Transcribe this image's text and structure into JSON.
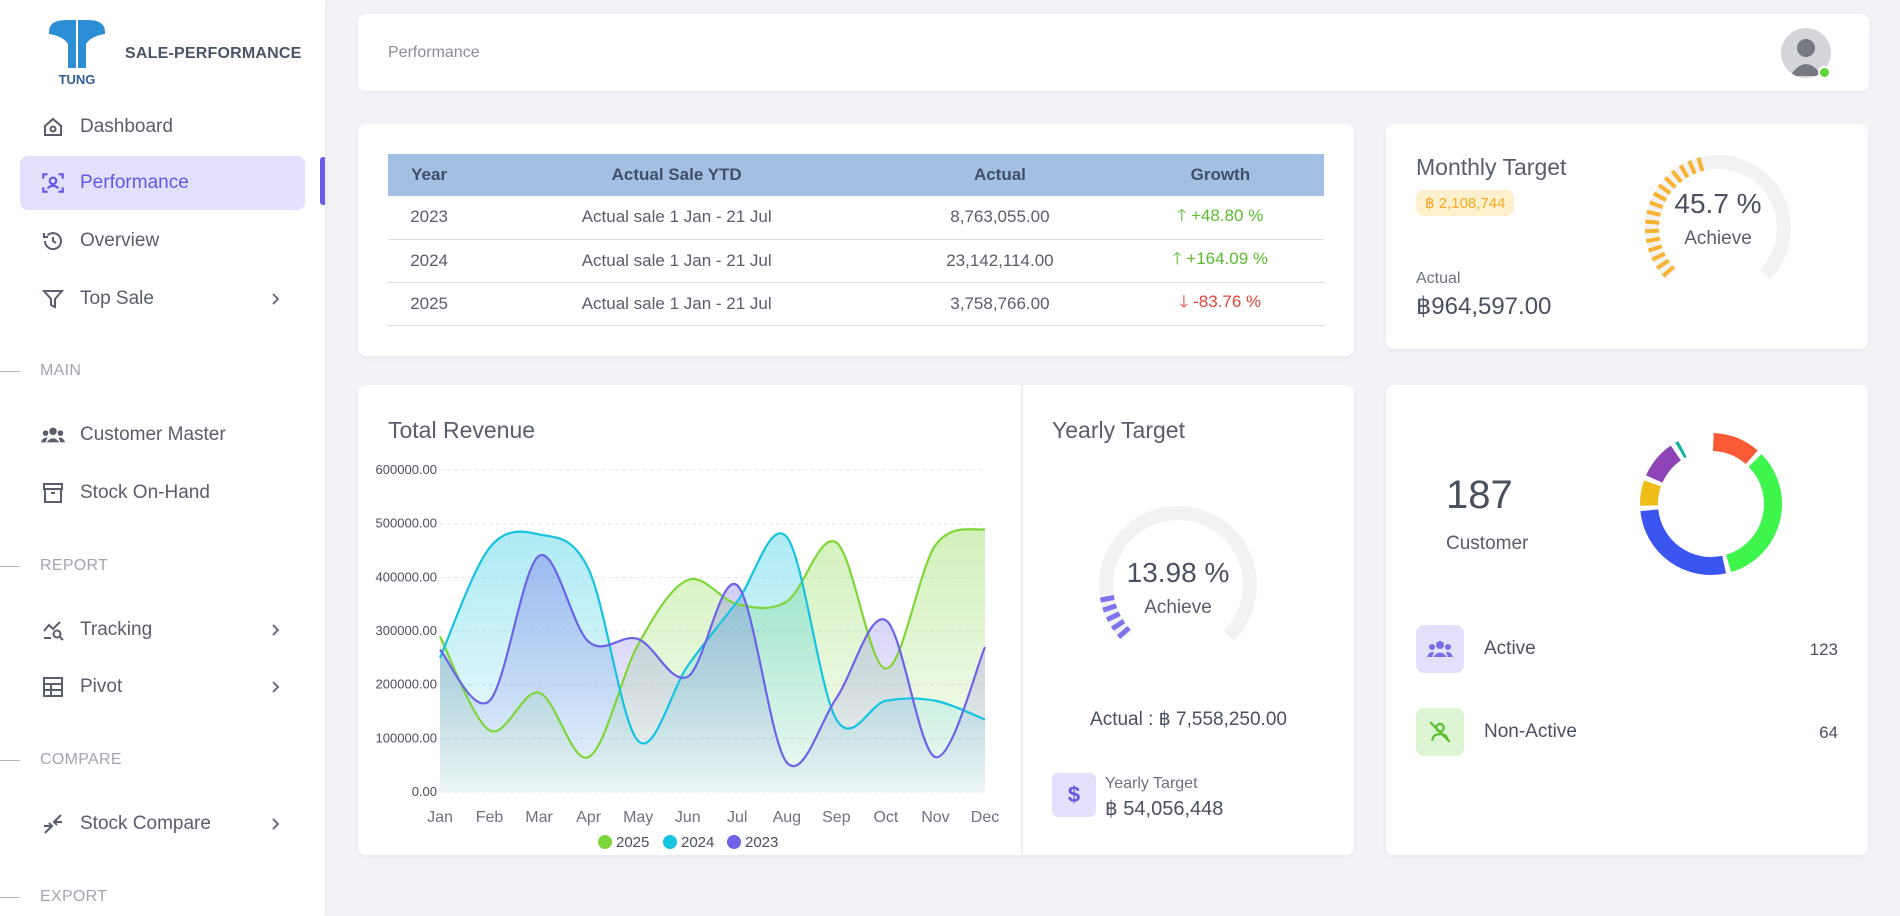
{
  "app": {
    "name": "SALE-PERFORMANCE",
    "logo_text": "TUNG"
  },
  "sidebar": {
    "items": [
      {
        "label": "Dashboard"
      },
      {
        "label": "Performance"
      },
      {
        "label": "Overview"
      },
      {
        "label": "Top Sale"
      },
      {
        "label": "Customer Master"
      },
      {
        "label": "Stock On-Hand"
      },
      {
        "label": "Tracking"
      },
      {
        "label": "Pivot"
      },
      {
        "label": "Stock Compare"
      }
    ],
    "sections": {
      "main": "MAIN",
      "report": "REPORT",
      "compare": "COMPARE",
      "export": "EXPORT"
    }
  },
  "header": {
    "breadcrumb": "Performance"
  },
  "growth_table": {
    "headers": [
      "Year",
      "Actual Sale YTD",
      "Actual",
      "Growth"
    ],
    "rows": [
      {
        "year": "2023",
        "ytd": "Actual sale 1 Jan - 21 Jul",
        "actual": "8,763,055.00",
        "growth": "+48.80 %",
        "direction": "up"
      },
      {
        "year": "2024",
        "ytd": "Actual sale 1 Jan - 21 Jul",
        "actual": "23,142,114.00",
        "growth": "+164.09 %",
        "direction": "up"
      },
      {
        "year": "2025",
        "ytd": "Actual sale 1 Jan - 21 Jul",
        "actual": "3,758,766.00",
        "growth": "-83.76 %",
        "direction": "down"
      }
    ]
  },
  "monthly_target": {
    "title": "Monthly Target",
    "target": "฿ 2,108,744",
    "actual_label": "Actual",
    "actual": "฿964,597.00",
    "percent": "45.7 %",
    "achieve_label": "Achieve",
    "progress": 0.457,
    "color": "#f7b331"
  },
  "yearly_target": {
    "title": "Yearly Target",
    "percent": "13.98 %",
    "achieve_label": "Achieve",
    "progress": 0.1398,
    "actual_text": "Actual : ฿ 7,558,250.00",
    "target_label": "Yearly Target",
    "target_value": "฿ 54,056,448",
    "icon": "dollar-icon",
    "icon_glyph": "$",
    "color": "#7f73ec"
  },
  "customers": {
    "total": "187",
    "label": "Customer",
    "rows": [
      {
        "label": "Active",
        "value": "123",
        "icon": "users-icon",
        "bg": "#e3e0fb",
        "color": "#7a6ee8"
      },
      {
        "label": "Non-Active",
        "value": "64",
        "icon": "user-off-icon",
        "bg": "#dcf5d3",
        "color": "#5bbd2f"
      }
    ],
    "donut_segments": [
      {
        "value": 0.12,
        "color": "#fb5a36"
      },
      {
        "value": 0.34,
        "color": "#3ef54c"
      },
      {
        "value": 0.28,
        "color": "#3a55f0"
      },
      {
        "value": 0.07,
        "color": "#f0be1a"
      },
      {
        "value": 0.1,
        "color": "#8f44b5"
      },
      {
        "value": 0.02,
        "color": "#17b3a1"
      }
    ]
  },
  "chart_data": {
    "type": "area",
    "title": "Total Revenue",
    "categories": [
      "Jan",
      "Feb",
      "Mar",
      "Apr",
      "May",
      "Jun",
      "Jul",
      "Aug",
      "Sep",
      "Oct",
      "Nov",
      "Dec"
    ],
    "ylim": [
      0,
      600000
    ],
    "yticks": [
      "0.00",
      "100000.00",
      "200000.00",
      "300000.00",
      "400000.00",
      "500000.00",
      "600000.00"
    ],
    "grid": true,
    "legend_position": "bottom",
    "series": [
      {
        "name": "2025",
        "color": "#7ed63a",
        "values": [
          290000,
          115000,
          185000,
          65000,
          275000,
          395000,
          350000,
          355000,
          465000,
          230000,
          460000,
          490000
        ]
      },
      {
        "name": "2024",
        "color": "#16c4e0",
        "values": [
          250000,
          455000,
          480000,
          415000,
          95000,
          235000,
          355000,
          475000,
          135000,
          170000,
          170000,
          135000
        ]
      },
      {
        "name": "2023",
        "color": "#6c63e6",
        "values": [
          265000,
          170000,
          440000,
          280000,
          285000,
          215000,
          385000,
          55000,
          175000,
          320000,
          65000,
          270000
        ]
      }
    ]
  }
}
